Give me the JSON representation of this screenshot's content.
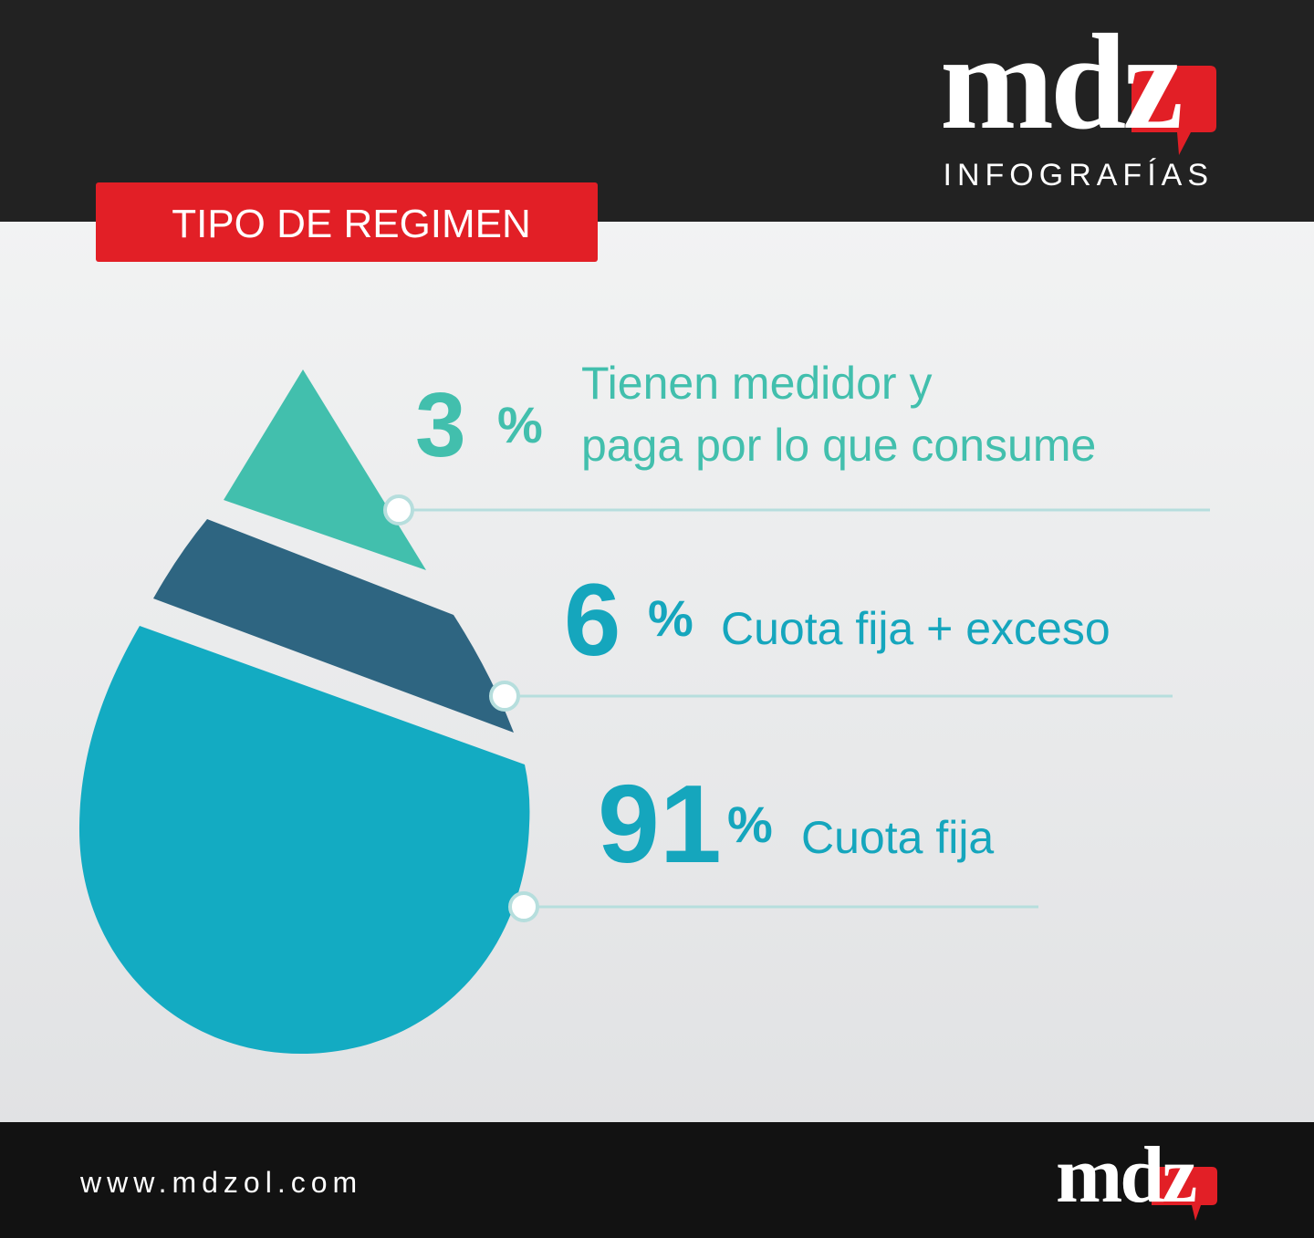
{
  "header": {
    "logo": "mdz",
    "subtitle": "INFOGRAFÍAS"
  },
  "chart_data": {
    "type": "drop",
    "title": "TIPO DE REGIMEN",
    "unit": "%",
    "categories": [
      [
        "Tienen medidor y",
        "paga por lo que consume"
      ],
      [
        "Cuota fija + exceso"
      ],
      [
        "Cuota fija"
      ]
    ],
    "values": [
      3,
      6,
      91
    ],
    "colors": [
      "#42bfad",
      "#2e6581",
      "#13abc2"
    ]
  },
  "footer": {
    "url": "www.mdzol.com",
    "logo": "mdz"
  }
}
